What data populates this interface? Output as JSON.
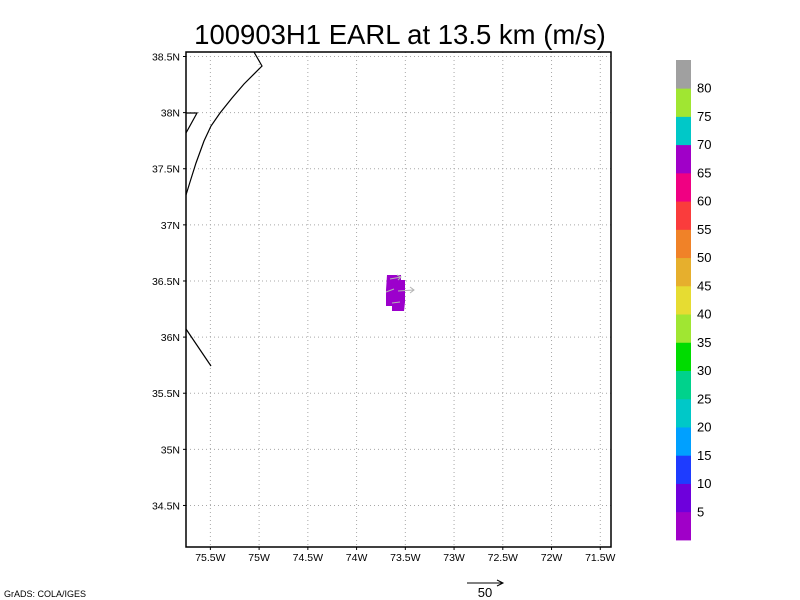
{
  "title": "100903H1 EARL at 13.5 km (m/s)",
  "map": {
    "lon_range": [
      -75.75,
      -71.39
    ],
    "lat_range": [
      34.13,
      38.54
    ],
    "grid": true,
    "lat_ticks": [
      {
        "value": 38.5,
        "label": "38.5N"
      },
      {
        "value": 38.0,
        "label": "38N"
      },
      {
        "value": 37.5,
        "label": "37.5N"
      },
      {
        "value": 37.0,
        "label": "37N"
      },
      {
        "value": 36.5,
        "label": "36.5N"
      },
      {
        "value": 36.0,
        "label": "36N"
      },
      {
        "value": 35.5,
        "label": "35.5N"
      },
      {
        "value": 35.0,
        "label": "35N"
      },
      {
        "value": 34.5,
        "label": "34.5N"
      }
    ],
    "lon_ticks": [
      {
        "value": -75.5,
        "label": "75.5W"
      },
      {
        "value": -75.0,
        "label": "75W"
      },
      {
        "value": -74.5,
        "label": "74.5W"
      },
      {
        "value": -74.0,
        "label": "74W"
      },
      {
        "value": -73.5,
        "label": "73.5W"
      },
      {
        "value": -73.0,
        "label": "73W"
      },
      {
        "value": -72.5,
        "label": "72.5W"
      },
      {
        "value": -72.0,
        "label": "72W"
      },
      {
        "value": -71.5,
        "label": "71.5W"
      }
    ]
  },
  "colorbar": {
    "levels": [
      5,
      10,
      15,
      20,
      25,
      30,
      35,
      40,
      45,
      50,
      55,
      60,
      65,
      70,
      75,
      80
    ],
    "colors": [
      "#a000c8",
      "#6e00dc",
      "#1e3cff",
      "#00a0ff",
      "#00c8c8",
      "#00d28c",
      "#00dc00",
      "#a0e632",
      "#e6dc32",
      "#e6af2d",
      "#f08228",
      "#fa3c3c",
      "#f00082",
      "#a000c8",
      "#00c8c8",
      "#a0e632",
      "#a0a0a0"
    ]
  },
  "vector_reference": {
    "label": "50"
  },
  "credit": "GrADS: COLA/IGES"
}
